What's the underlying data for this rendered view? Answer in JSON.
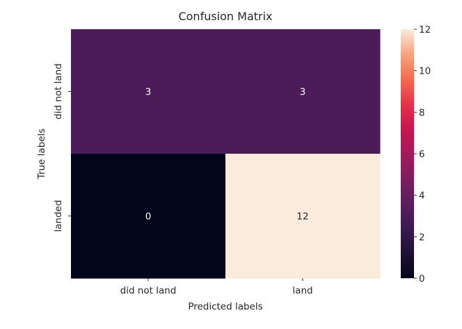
{
  "chart_data": {
    "type": "heatmap",
    "title": "Confusion Matrix",
    "xlabel": "Predicted labels",
    "ylabel": "True labels",
    "x_categories": [
      "did not land",
      "land"
    ],
    "y_categories": [
      "did not land",
      "landed"
    ],
    "values": [
      [
        3,
        3
      ],
      [
        0,
        12
      ]
    ],
    "colorbar": {
      "min": 0,
      "max": 12,
      "ticks": [
        0,
        2,
        4,
        6,
        8,
        10,
        12
      ],
      "colormap": "rocket"
    },
    "annotate": true,
    "grid": false
  }
}
